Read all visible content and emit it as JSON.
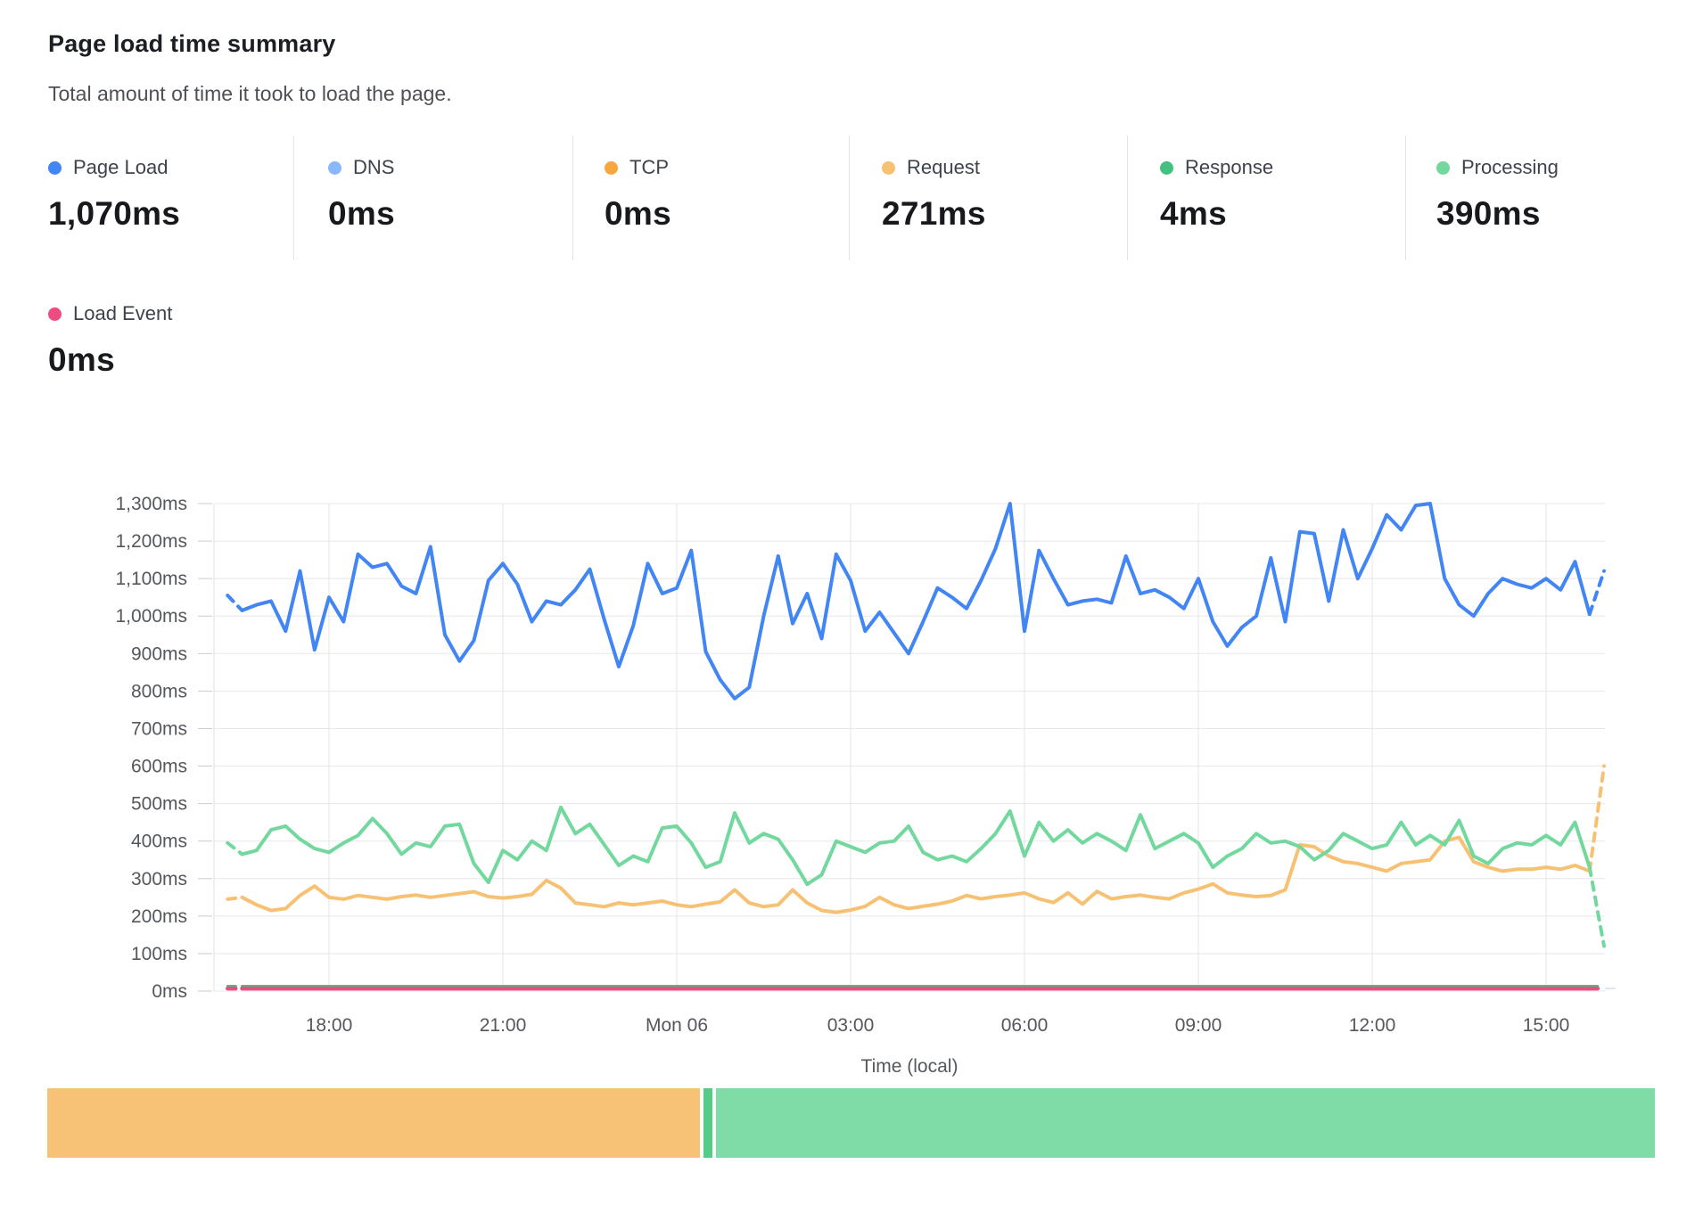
{
  "header": {
    "title": "Page load time summary",
    "subtitle": "Total amount of time it took to load the page."
  },
  "metrics": [
    {
      "id": "page_load",
      "label": "Page Load",
      "value": "1,070ms",
      "color": "#4285f4"
    },
    {
      "id": "dns",
      "label": "DNS",
      "value": "0ms",
      "color": "#8ab7f9"
    },
    {
      "id": "tcp",
      "label": "TCP",
      "value": "0ms",
      "color": "#f6a83c"
    },
    {
      "id": "request",
      "label": "Request",
      "value": "271ms",
      "color": "#f7c173"
    },
    {
      "id": "response",
      "label": "Response",
      "value": "4ms",
      "color": "#43c181"
    },
    {
      "id": "processing",
      "label": "Processing",
      "value": "390ms",
      "color": "#72d89e"
    }
  ],
  "load_event": {
    "label": "Load Event",
    "value": "0ms",
    "color": "#ec4c82"
  },
  "chart_data": {
    "type": "line",
    "grid": true,
    "x_axis": {
      "label": "Time (local)",
      "start_hour": 16.25,
      "interval_hours": 0.25,
      "ticks": [
        {
          "hour": 18,
          "label": "18:00"
        },
        {
          "hour": 21,
          "label": "21:00"
        },
        {
          "hour": 24,
          "label": "Mon 06"
        },
        {
          "hour": 27,
          "label": "03:00"
        },
        {
          "hour": 30,
          "label": "06:00"
        },
        {
          "hour": 33,
          "label": "09:00"
        },
        {
          "hour": 36,
          "label": "12:00"
        },
        {
          "hour": 39,
          "label": "15:00"
        }
      ]
    },
    "y_axis": {
      "min": 0,
      "max": 1300,
      "step": 100,
      "unit": "ms"
    },
    "dashed_first_segment": true,
    "dashed_last_segment": true,
    "series": [
      {
        "name": "Page Load",
        "color": "#4285f4",
        "stroke_width": 4,
        "values": [
          1055,
          1015,
          1030,
          1040,
          960,
          1120,
          910,
          1050,
          985,
          1165,
          1130,
          1140,
          1080,
          1060,
          1185,
          950,
          880,
          935,
          1095,
          1140,
          1085,
          985,
          1040,
          1030,
          1070,
          1125,
          990,
          865,
          975,
          1140,
          1060,
          1075,
          1175,
          905,
          830,
          780,
          810,
          1000,
          1160,
          980,
          1060,
          940,
          1165,
          1095,
          960,
          1010,
          955,
          900,
          985,
          1075,
          1050,
          1020,
          1095,
          1180,
          1300,
          960,
          1175,
          1100,
          1030,
          1040,
          1045,
          1035,
          1160,
          1060,
          1070,
          1050,
          1020,
          1100,
          985,
          920,
          970,
          1000,
          1155,
          985,
          1225,
          1220,
          1040,
          1230,
          1100,
          1180,
          1270,
          1230,
          1295,
          1300,
          1100,
          1030,
          1000,
          1060,
          1100,
          1085,
          1075,
          1100,
          1070,
          1145,
          1005,
          1120
        ]
      },
      {
        "name": "Request",
        "color": "#f7c173",
        "stroke_width": 4,
        "values": [
          245,
          250,
          230,
          215,
          220,
          255,
          280,
          250,
          245,
          255,
          250,
          245,
          252,
          256,
          250,
          255,
          260,
          265,
          252,
          248,
          252,
          258,
          295,
          275,
          235,
          230,
          225,
          235,
          230,
          235,
          240,
          230,
          225,
          232,
          238,
          270,
          235,
          225,
          230,
          270,
          235,
          215,
          210,
          216,
          226,
          250,
          230,
          220,
          226,
          232,
          240,
          255,
          246,
          252,
          256,
          262,
          246,
          236,
          262,
          232,
          266,
          246,
          252,
          256,
          250,
          246,
          262,
          272,
          286,
          262,
          256,
          252,
          255,
          270,
          390,
          385,
          360,
          345,
          340,
          330,
          320,
          340,
          345,
          350,
          400,
          410,
          345,
          330,
          320,
          325,
          325,
          330,
          325,
          335,
          320,
          600
        ]
      },
      {
        "name": "Processing",
        "color": "#72d89e",
        "stroke_width": 4,
        "values": [
          395,
          365,
          375,
          430,
          440,
          405,
          380,
          370,
          395,
          415,
          460,
          420,
          365,
          395,
          385,
          440,
          445,
          340,
          290,
          375,
          350,
          400,
          375,
          490,
          420,
          445,
          390,
          335,
          360,
          345,
          435,
          440,
          395,
          330,
          345,
          475,
          395,
          420,
          405,
          350,
          285,
          310,
          400,
          385,
          370,
          395,
          400,
          440,
          370,
          350,
          360,
          345,
          380,
          420,
          480,
          360,
          450,
          400,
          430,
          395,
          420,
          400,
          375,
          470,
          380,
          400,
          420,
          395,
          330,
          360,
          380,
          420,
          395,
          400,
          385,
          350,
          375,
          420,
          400,
          380,
          390,
          450,
          390,
          415,
          390,
          455,
          360,
          340,
          380,
          395,
          390,
          415,
          390,
          450,
          330,
          120
        ]
      },
      {
        "name": "Response",
        "color": "#43c181",
        "stroke_width": 3,
        "constant": 13,
        "points": 96
      },
      {
        "name": "Load Event",
        "color": "#ec4c82",
        "stroke_width": 4.5,
        "constant": 7,
        "points": 96
      }
    ]
  },
  "stacked_bar": {
    "segments": [
      {
        "name": "Request",
        "color": "#f8c276",
        "value_ms": 271
      },
      {
        "name": "Response",
        "color": "#54cb86",
        "value_ms": 4
      },
      {
        "name": "Processing",
        "color": "#7fdca6",
        "value_ms": 390
      }
    ]
  }
}
